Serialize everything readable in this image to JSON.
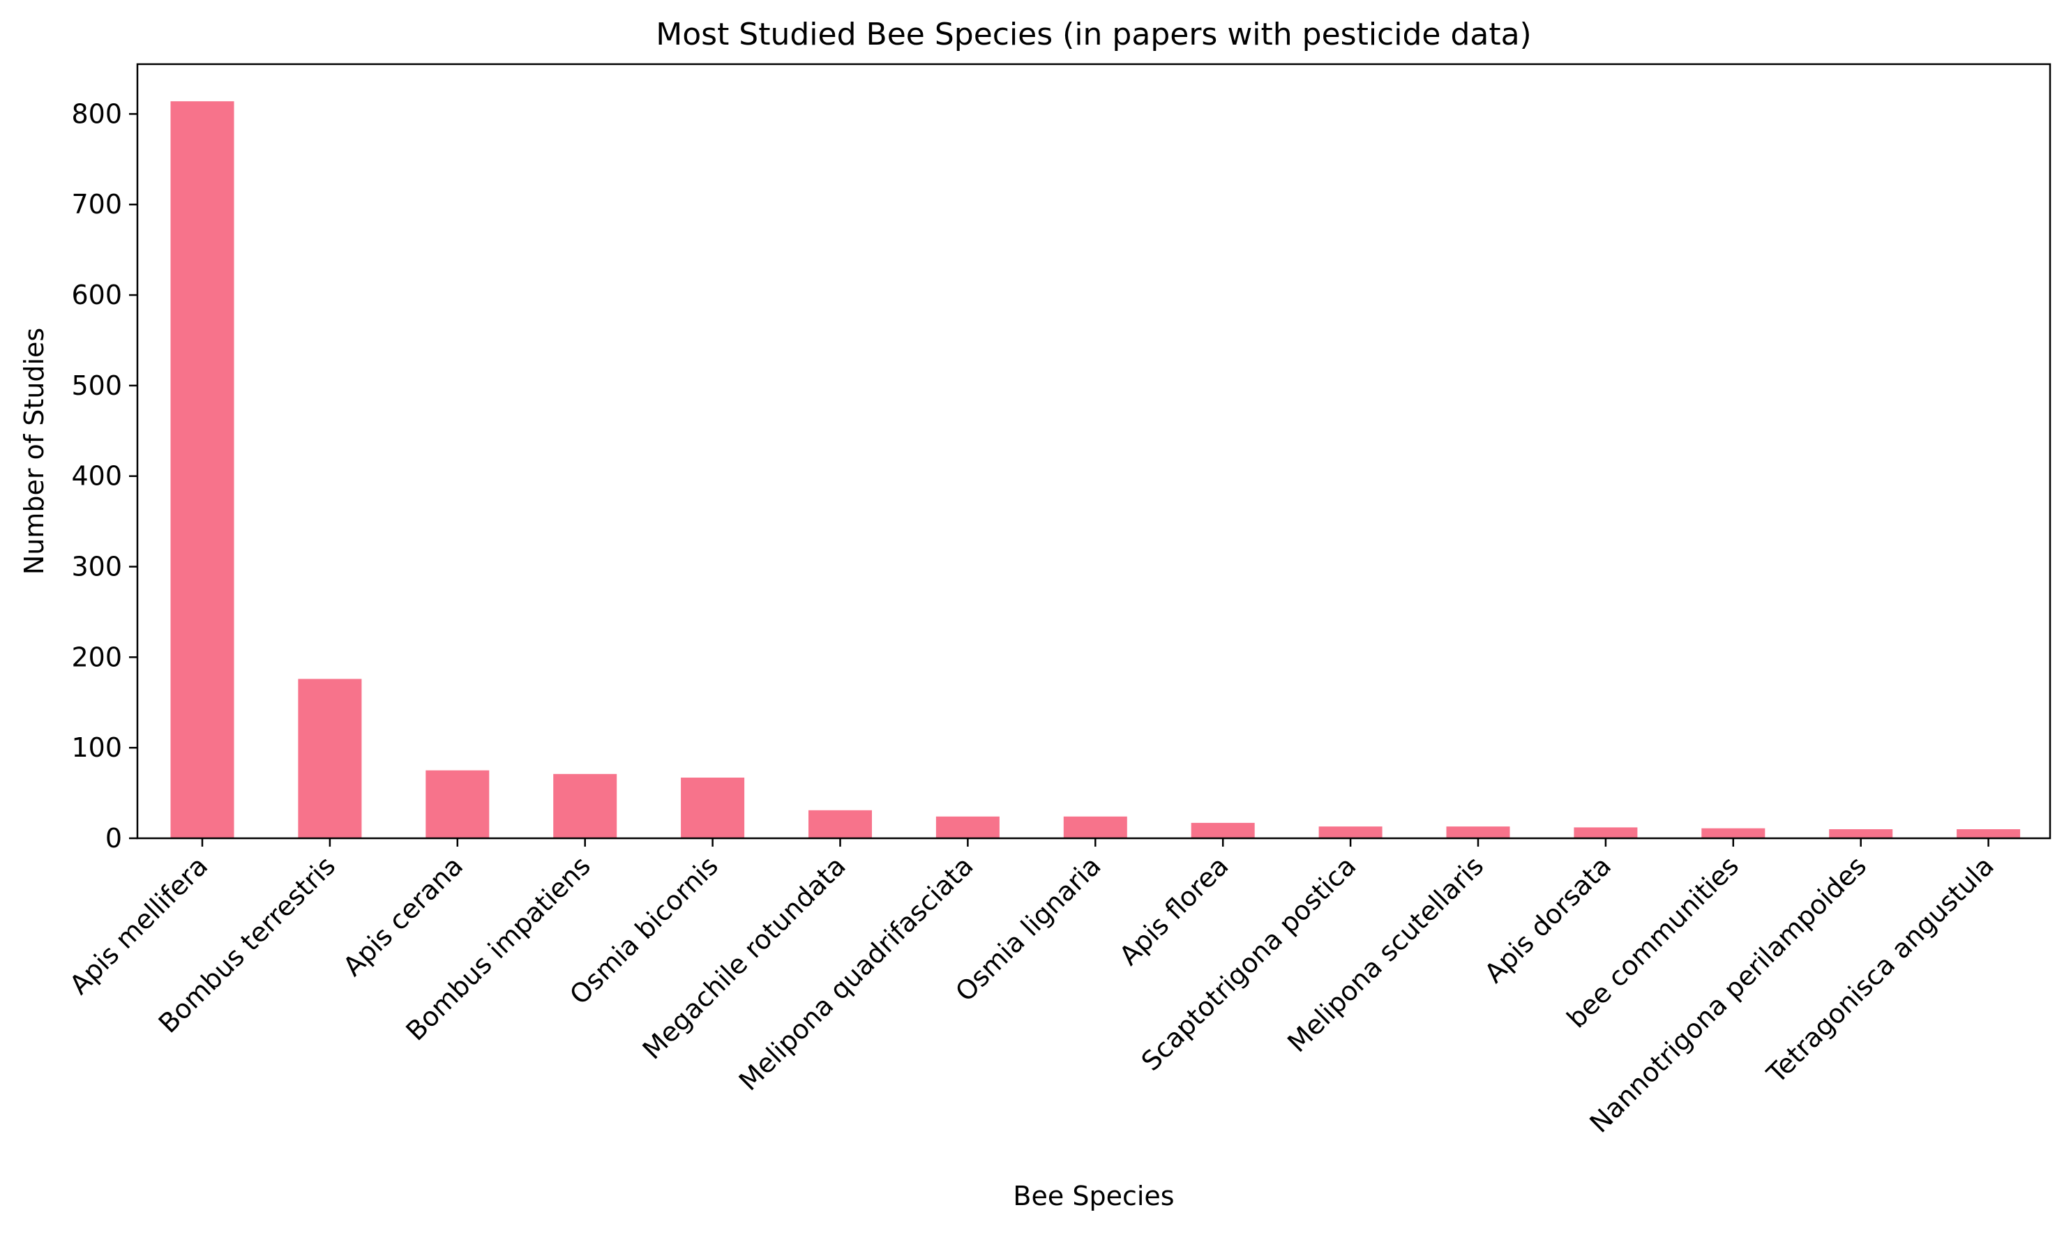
{
  "chart_data": {
    "type": "bar",
    "title": "Most Studied Bee Species (in papers with pesticide data)",
    "xlabel": "Bee Species",
    "ylabel": "Number of Studies",
    "ylim": [
      0,
      855
    ],
    "yticks": [
      0,
      100,
      200,
      300,
      400,
      500,
      600,
      700,
      800
    ],
    "grid": false,
    "legend": "none",
    "bar_color": "#f7738b",
    "categories": [
      "Apis mellifera",
      "Bombus terrestris",
      "Apis cerana",
      "Bombus impatiens",
      "Osmia bicornis",
      "Megachile rotundata",
      "Melipona quadrifasciata",
      "Osmia lignaria",
      "Apis florea",
      "Scaptotrigona postica",
      "Melipona scutellaris",
      "Apis dorsata",
      "bee communities",
      "Nannotrigona perilampoides",
      "Tetragonisca angustula"
    ],
    "values": [
      814,
      176,
      75,
      71,
      67,
      31,
      24,
      24,
      17,
      13,
      13,
      12,
      11,
      10,
      10
    ]
  }
}
